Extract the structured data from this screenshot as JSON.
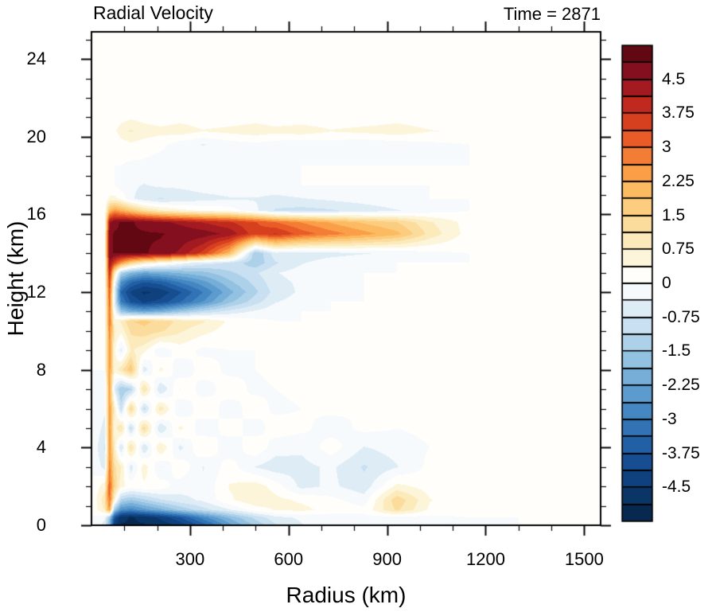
{
  "chart_data": {
    "type": "heatmap",
    "title": "Radial Velocity",
    "annotation": "Time = 2871",
    "xlabel": "Radius (km)",
    "ylabel": "Height (km)",
    "xlim": [
      0,
      1550
    ],
    "ylim": [
      0,
      25.4
    ],
    "x_ticks": [
      300,
      600,
      900,
      1200,
      1500
    ],
    "x_minor_step": 100,
    "y_ticks": [
      0,
      4,
      8,
      12,
      16,
      20,
      24
    ],
    "y_minor_step": 1,
    "legend_position": "right-colorbar",
    "grid_lines": false,
    "colorbar": {
      "min": -5.25,
      "max": 5.25,
      "step": 0.375,
      "tick_labels": [
        "4.5",
        "3.75",
        "3",
        "2.25",
        "1.5",
        "0.75",
        "0",
        "-0.75",
        "-1.5",
        "-2.25",
        "-3",
        "-3.75",
        "-4.5"
      ],
      "colors": [
        "#07294f",
        "#0a3567",
        "#0e417e",
        "#174e92",
        "#2260a5",
        "#3173b5",
        "#4587c2",
        "#5c9bce",
        "#76aed8",
        "#92c1e1",
        "#aed1ea",
        "#c8e0f1",
        "#deecf6",
        "#f7fafc",
        "#fffefa",
        "#fdf5da",
        "#fceabb",
        "#fcdc9c",
        "#fccd7e",
        "#fcba61",
        "#fa9e48",
        "#f47d35",
        "#e95c27",
        "#d7401e",
        "#c02a1e",
        "#a31a20",
        "#840f1e",
        "#620812"
      ]
    },
    "grid": {
      "radii": [
        0,
        40,
        55,
        70,
        90,
        120,
        160,
        210,
        270,
        340,
        420,
        500,
        560,
        640,
        730,
        830,
        930,
        1030,
        1150,
        1300,
        1550
      ],
      "heights": [
        0,
        0.4,
        0.8,
        1.3,
        2,
        3,
        4,
        5,
        6,
        7,
        8,
        9,
        10,
        10.5,
        11,
        11.5,
        12,
        12.5,
        13,
        13.5,
        14,
        15,
        15.6,
        16.2,
        16.8,
        17.5,
        18.5,
        19.6,
        20.3,
        21,
        22,
        25.4
      ],
      "values": [
        [
          0,
          -0.5,
          -2,
          -4.5,
          -4.9,
          -4.9,
          -4.9,
          -4.8,
          -4.4,
          -3.6,
          -2.4,
          -1.4,
          -0.8,
          -0.4,
          -0.2,
          -0.2,
          -0.3,
          -0.2,
          -0.1,
          0,
          0
        ],
        [
          0,
          -0.3,
          -1.5,
          -3.8,
          -4.8,
          -4.9,
          -4.8,
          -4.4,
          -3.8,
          -2.8,
          -1.8,
          -1,
          -0.5,
          -0.3,
          -0.2,
          -0.1,
          -0.2,
          -0.1,
          0,
          0,
          0
        ],
        [
          0,
          0.8,
          2.5,
          -1.5,
          -2.6,
          -2.8,
          -2.4,
          -2,
          -1.4,
          -0.9,
          -0.4,
          0.2,
          0.4,
          0.5,
          0.2,
          0.1,
          1.2,
          0.3,
          0.1,
          0.2,
          0
        ],
        [
          0,
          1,
          3,
          0.5,
          -1.2,
          -1.5,
          -1.2,
          -0.8,
          -0.5,
          -0.3,
          0.3,
          0.7,
          0.5,
          0.3,
          0.1,
          -0.2,
          1.4,
          0.4,
          0.1,
          0.3,
          0
        ],
        [
          0,
          0.6,
          3.2,
          1.5,
          0.5,
          0.2,
          0.3,
          0.2,
          -0.2,
          -0.3,
          0.4,
          0.6,
          0.2,
          -0.5,
          -0.3,
          -0.6,
          0.5,
          0.2,
          0,
          0.1,
          0
        ],
        [
          0,
          -0.5,
          2.8,
          1.2,
          0.8,
          -0.6,
          0.6,
          -0.4,
          0.3,
          -0.4,
          0.2,
          -0.4,
          -0.6,
          -0.5,
          -0.3,
          -0.8,
          -0.4,
          0.1,
          0,
          0,
          0
        ],
        [
          0,
          -0.8,
          2.6,
          0.8,
          -0.8,
          1.2,
          -0.8,
          0.8,
          -0.5,
          0.4,
          -0.3,
          0.3,
          -0.2,
          -0.3,
          0.2,
          -0.4,
          -0.2,
          0,
          0.1,
          0,
          0
        ],
        [
          0,
          -0.5,
          2.5,
          0.5,
          1.2,
          -1,
          1.4,
          -0.8,
          0.5,
          -0.3,
          0.2,
          -0.2,
          0.2,
          0.1,
          -0.2,
          0.1,
          0,
          0.1,
          0,
          0,
          0
        ],
        [
          0,
          -0.3,
          2.5,
          0.8,
          -1,
          1.5,
          -1,
          1,
          -0.4,
          0.3,
          -0.2,
          0.2,
          -0.1,
          0,
          0.1,
          0,
          0,
          0,
          0,
          0,
          0
        ],
        [
          0,
          -0.2,
          2.4,
          -0.5,
          -1.5,
          -1.2,
          1.2,
          -0.8,
          0.4,
          -0.2,
          0.2,
          -0.1,
          0,
          0.1,
          0,
          0,
          0.1,
          0,
          0,
          0,
          0
        ],
        [
          0,
          0,
          2.5,
          0.5,
          1,
          1.8,
          -0.6,
          0.5,
          -0.3,
          0.2,
          -0.1,
          0,
          0.1,
          0,
          0,
          0,
          0,
          0,
          0,
          0,
          0
        ],
        [
          0,
          0,
          2.6,
          0.5,
          -0.5,
          0.8,
          0.5,
          -0.3,
          0.2,
          -0.1,
          0,
          0,
          0,
          0,
          0,
          0,
          0,
          0,
          0,
          0,
          0
        ],
        [
          0,
          0,
          2.8,
          0.8,
          0.5,
          1.2,
          1.4,
          1.2,
          0.8,
          0.5,
          0.2,
          0,
          0,
          0,
          0,
          0,
          0,
          0,
          0,
          0,
          0
        ],
        [
          0,
          0,
          3,
          0.5,
          0.8,
          1.5,
          1.6,
          1.4,
          1,
          0.8,
          0.3,
          0.1,
          0,
          0,
          0,
          0,
          0,
          0,
          0,
          0,
          0
        ],
        [
          0,
          0,
          3,
          0,
          -1.5,
          -2,
          -2.2,
          -2,
          -1.5,
          -1,
          -0.6,
          -0.3,
          -0.1,
          0,
          0,
          0,
          0,
          0,
          0,
          0,
          0
        ],
        [
          0,
          0,
          3.2,
          -0.5,
          -3,
          -3.8,
          -4.2,
          -4,
          -3.4,
          -2.6,
          -1.6,
          -0.9,
          -0.4,
          -0.2,
          0,
          0,
          0,
          0,
          0,
          0,
          0
        ],
        [
          0,
          0,
          3.4,
          -0.5,
          -3.4,
          -4.2,
          -4.6,
          -4.4,
          -3.8,
          -3,
          -2,
          -1.2,
          -0.6,
          -0.3,
          -0.1,
          0,
          0,
          0,
          0,
          0,
          0
        ],
        [
          0,
          0,
          3.6,
          0,
          -2.6,
          -3.4,
          -3.8,
          -3.6,
          -3,
          -2.4,
          -1.6,
          -1,
          -0.5,
          -0.3,
          -0.1,
          0,
          0,
          0,
          0,
          0,
          0
        ],
        [
          0,
          0,
          4,
          1,
          -1.2,
          -1.8,
          -2.2,
          -2,
          -1.8,
          -1.6,
          -1.2,
          -0.8,
          -0.4,
          -0.2,
          -0.1,
          0,
          0,
          0,
          0,
          0,
          0
        ],
        [
          0,
          0,
          4.5,
          3.5,
          2.5,
          1.5,
          0.8,
          0.3,
          -0.2,
          -0.6,
          -0.8,
          -1.4,
          -0.8,
          -0.4,
          -0.2,
          -0.1,
          0,
          0,
          0,
          0,
          0
        ],
        [
          0,
          0,
          4.8,
          4.9,
          4.9,
          4.9,
          4.9,
          4.8,
          4.4,
          3.6,
          2,
          -1.5,
          -0.5,
          -0.6,
          -0.5,
          -0.4,
          -0.3,
          -0.1,
          0,
          0,
          0
        ],
        [
          0,
          0,
          4.8,
          4.9,
          4.9,
          4.9,
          4.9,
          4.9,
          4.8,
          4.7,
          4.4,
          3.5,
          3.8,
          3.2,
          2.8,
          2.4,
          2,
          1,
          0.2,
          0,
          0
        ],
        [
          0,
          0,
          4.4,
          4.8,
          4.9,
          4.9,
          4.8,
          4.6,
          4.4,
          4.1,
          3.8,
          3.4,
          3,
          2.6,
          2.2,
          1.8,
          1.5,
          0.8,
          0.2,
          0,
          0
        ],
        [
          0,
          0,
          2,
          2.5,
          2.2,
          1.8,
          1.2,
          0.8,
          0.5,
          0.3,
          0.2,
          -0.3,
          -0.8,
          -0.9,
          -0.8,
          -0.6,
          -0.4,
          -0.2,
          0,
          0,
          0
        ],
        [
          0,
          0,
          0.5,
          0.5,
          0.3,
          -0.3,
          -0.6,
          -0.8,
          -0.6,
          -0.5,
          -0.4,
          -0.4,
          -0.5,
          -0.4,
          -0.3,
          -0.2,
          -0.1,
          0,
          0,
          0,
          0
        ],
        [
          0,
          0,
          0,
          0,
          -0.2,
          -0.3,
          -0.4,
          -0.3,
          -0.3,
          -0.2,
          -0.2,
          -0.1,
          -0.1,
          0,
          0,
          0,
          0,
          0,
          0,
          0,
          0
        ],
        [
          0,
          0,
          0,
          0,
          0,
          -0.1,
          -0.1,
          -0.2,
          -0.1,
          0,
          0,
          0,
          0,
          0,
          0,
          0,
          0,
          0,
          0,
          0,
          0
        ],
        [
          0,
          0,
          0,
          0,
          0.2,
          0.3,
          0.2,
          0.1,
          -0.2,
          -0.4,
          -0.2,
          -0.1,
          -0.2,
          -0.3,
          -0.2,
          -0.3,
          -0.2,
          -0.1,
          0,
          0,
          0
        ],
        [
          0,
          0,
          0,
          0.3,
          0.6,
          0.8,
          0.6,
          0.5,
          0.6,
          0.4,
          0.5,
          0.6,
          0.5,
          0.6,
          0.4,
          0.5,
          0.6,
          0.4,
          0.3,
          0.1,
          0
        ],
        [
          0,
          0,
          0,
          0,
          0.2,
          0.3,
          0.2,
          0.1,
          0.2,
          0.1,
          0.1,
          0.2,
          0.1,
          0.1,
          0.1,
          0.1,
          0.2,
          0.1,
          0,
          0,
          0
        ],
        [
          0,
          0,
          0,
          0,
          0,
          0,
          0,
          0,
          0,
          0,
          0,
          0,
          0,
          0,
          0,
          0,
          0,
          0,
          0,
          0,
          0
        ],
        [
          0,
          0,
          0,
          0,
          0,
          0,
          0,
          0,
          0,
          0,
          0,
          0,
          0,
          0,
          0,
          0,
          0,
          0,
          0,
          0,
          0
        ]
      ]
    }
  }
}
